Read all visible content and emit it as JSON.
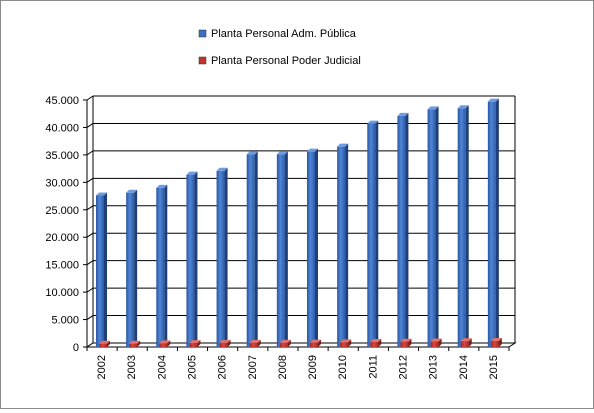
{
  "chart_data": {
    "type": "bar",
    "categories": [
      "2002",
      "2003",
      "2004",
      "2005",
      "2006",
      "2007",
      "2008",
      "2009",
      "2010",
      "2011",
      "2012",
      "2013",
      "2014",
      "2015"
    ],
    "series": [
      {
        "name": "Planta Personal Adm. Pública",
        "color": "#3a6fc2",
        "values": [
          27600,
          28100,
          29000,
          31400,
          32100,
          35100,
          35100,
          35600,
          36500,
          40700,
          42100,
          43300,
          43500,
          44700
        ]
      },
      {
        "name": "Planta Personal Poder Judicial",
        "color": "#c0342e",
        "values": [
          600,
          600,
          650,
          700,
          750,
          750,
          750,
          800,
          850,
          900,
          950,
          1000,
          1050,
          1100
        ]
      }
    ],
    "yticks": [
      "0",
      "5.000",
      "10.000",
      "15.000",
      "20.000",
      "25.000",
      "30.000",
      "35.000",
      "40.000",
      "45.000"
    ],
    "ylim": [
      0,
      45000
    ],
    "legend_position": "top",
    "grid": true,
    "style": "3d-clustered-column"
  }
}
